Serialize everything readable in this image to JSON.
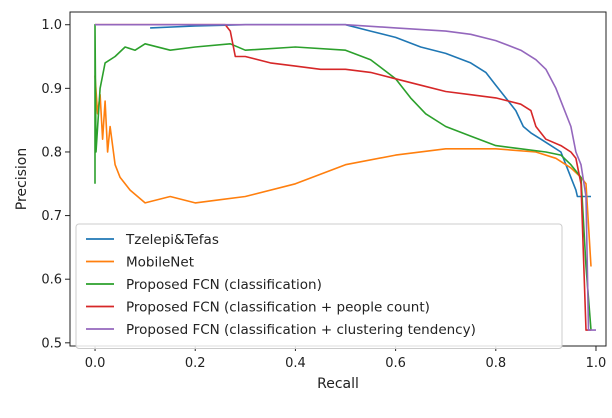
{
  "chart_data": {
    "type": "line",
    "title": "",
    "xlabel": "Recall",
    "ylabel": "Precision",
    "xlim": [
      -0.05,
      1.02
    ],
    "ylim": [
      0.495,
      1.02
    ],
    "grid": false,
    "legend_position": "lower-left",
    "x_ticks": [
      0.0,
      0.2,
      0.4,
      0.6,
      0.8,
      1.0
    ],
    "x_tick_labels": [
      "0.0",
      "0.2",
      "0.4",
      "0.6",
      "0.8",
      "1.0"
    ],
    "y_ticks": [
      0.5,
      0.6,
      0.7,
      0.8,
      0.9,
      1.0
    ],
    "y_tick_labels": [
      "0.5",
      "0.6",
      "0.7",
      "0.8",
      "0.9",
      "1.0"
    ],
    "series": [
      {
        "name": "Tzelepi&Tefas",
        "color": "#1f77b4",
        "points": [
          [
            0.11,
            0.995
          ],
          [
            0.2,
            0.998
          ],
          [
            0.3,
            1.0
          ],
          [
            0.5,
            1.0
          ],
          [
            0.55,
            0.99
          ],
          [
            0.6,
            0.98
          ],
          [
            0.65,
            0.965
          ],
          [
            0.7,
            0.955
          ],
          [
            0.75,
            0.94
          ],
          [
            0.78,
            0.925
          ],
          [
            0.8,
            0.905
          ],
          [
            0.82,
            0.885
          ],
          [
            0.84,
            0.865
          ],
          [
            0.855,
            0.84
          ],
          [
            0.87,
            0.83
          ],
          [
            0.89,
            0.82
          ],
          [
            0.91,
            0.81
          ],
          [
            0.93,
            0.8
          ],
          [
            0.94,
            0.78
          ],
          [
            0.95,
            0.76
          ],
          [
            0.96,
            0.74
          ],
          [
            0.963,
            0.73
          ],
          [
            0.99,
            0.73
          ]
        ]
      },
      {
        "name": "MobileNet",
        "color": "#ff7f0e",
        "points": [
          [
            0.0,
            0.92
          ],
          [
            0.005,
            0.86
          ],
          [
            0.01,
            0.89
          ],
          [
            0.015,
            0.82
          ],
          [
            0.02,
            0.88
          ],
          [
            0.025,
            0.8
          ],
          [
            0.03,
            0.84
          ],
          [
            0.04,
            0.78
          ],
          [
            0.05,
            0.76
          ],
          [
            0.07,
            0.74
          ],
          [
            0.1,
            0.72
          ],
          [
            0.15,
            0.73
          ],
          [
            0.2,
            0.72
          ],
          [
            0.25,
            0.725
          ],
          [
            0.3,
            0.73
          ],
          [
            0.4,
            0.75
          ],
          [
            0.5,
            0.78
          ],
          [
            0.6,
            0.795
          ],
          [
            0.7,
            0.805
          ],
          [
            0.8,
            0.805
          ],
          [
            0.88,
            0.8
          ],
          [
            0.92,
            0.79
          ],
          [
            0.95,
            0.775
          ],
          [
            0.97,
            0.76
          ],
          [
            0.98,
            0.75
          ],
          [
            0.99,
            0.62
          ]
        ]
      },
      {
        "name": "Proposed FCN (classification)",
        "color": "#2ca02c",
        "points": [
          [
            0.0,
            0.75
          ],
          [
            0.0,
            1.0
          ],
          [
            0.002,
            0.8
          ],
          [
            0.01,
            0.9
          ],
          [
            0.02,
            0.94
          ],
          [
            0.04,
            0.95
          ],
          [
            0.06,
            0.965
          ],
          [
            0.08,
            0.96
          ],
          [
            0.1,
            0.97
          ],
          [
            0.15,
            0.96
          ],
          [
            0.2,
            0.965
          ],
          [
            0.27,
            0.97
          ],
          [
            0.3,
            0.96
          ],
          [
            0.4,
            0.965
          ],
          [
            0.5,
            0.96
          ],
          [
            0.55,
            0.945
          ],
          [
            0.6,
            0.915
          ],
          [
            0.63,
            0.885
          ],
          [
            0.66,
            0.86
          ],
          [
            0.7,
            0.84
          ],
          [
            0.75,
            0.825
          ],
          [
            0.8,
            0.81
          ],
          [
            0.85,
            0.805
          ],
          [
            0.9,
            0.8
          ],
          [
            0.93,
            0.795
          ],
          [
            0.95,
            0.78
          ],
          [
            0.97,
            0.76
          ],
          [
            0.98,
            0.62
          ],
          [
            0.99,
            0.52
          ]
        ]
      },
      {
        "name": "Proposed FCN (classification + people count)",
        "color": "#d62728",
        "points": [
          [
            0.0,
            1.0
          ],
          [
            0.26,
            1.0
          ],
          [
            0.27,
            0.99
          ],
          [
            0.28,
            0.95
          ],
          [
            0.3,
            0.95
          ],
          [
            0.35,
            0.94
          ],
          [
            0.4,
            0.935
          ],
          [
            0.45,
            0.93
          ],
          [
            0.5,
            0.93
          ],
          [
            0.55,
            0.925
          ],
          [
            0.6,
            0.915
          ],
          [
            0.65,
            0.905
          ],
          [
            0.7,
            0.895
          ],
          [
            0.75,
            0.89
          ],
          [
            0.8,
            0.885
          ],
          [
            0.85,
            0.875
          ],
          [
            0.87,
            0.865
          ],
          [
            0.88,
            0.84
          ],
          [
            0.9,
            0.82
          ],
          [
            0.93,
            0.81
          ],
          [
            0.95,
            0.8
          ],
          [
            0.96,
            0.79
          ],
          [
            0.97,
            0.75
          ],
          [
            0.98,
            0.52
          ],
          [
            0.99,
            0.52
          ]
        ]
      },
      {
        "name": "Proposed FCN (classification + clustering tendency)",
        "color": "#9467bd",
        "points": [
          [
            0.0,
            1.0
          ],
          [
            0.5,
            1.0
          ],
          [
            0.6,
            0.995
          ],
          [
            0.7,
            0.99
          ],
          [
            0.75,
            0.985
          ],
          [
            0.8,
            0.975
          ],
          [
            0.85,
            0.96
          ],
          [
            0.88,
            0.945
          ],
          [
            0.9,
            0.93
          ],
          [
            0.92,
            0.9
          ],
          [
            0.93,
            0.88
          ],
          [
            0.95,
            0.84
          ],
          [
            0.96,
            0.8
          ],
          [
            0.97,
            0.78
          ],
          [
            0.98,
            0.73
          ],
          [
            0.985,
            0.52
          ],
          [
            1.0,
            0.52
          ]
        ]
      }
    ]
  }
}
